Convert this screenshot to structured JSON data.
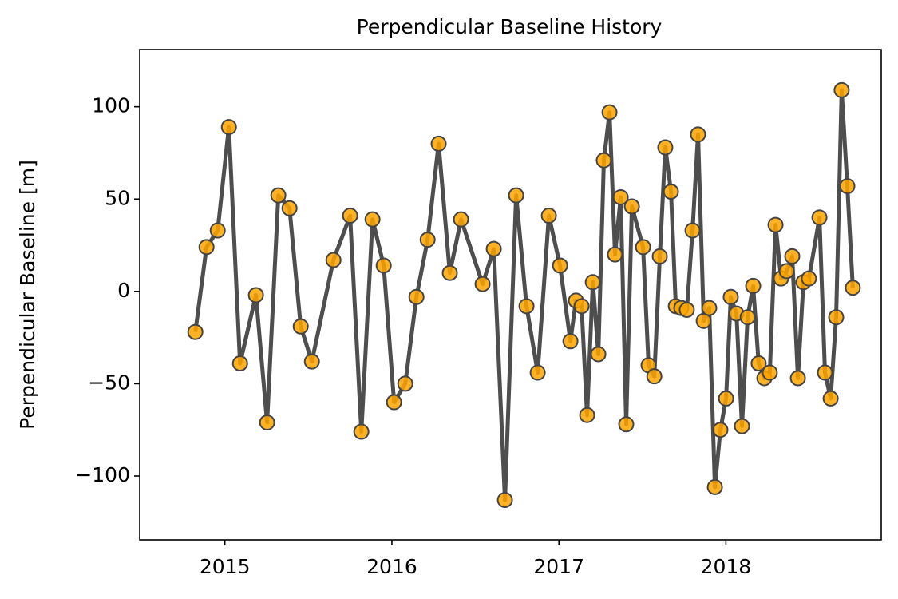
{
  "chart_data": {
    "type": "line",
    "title": "Perpendicular Baseline History",
    "ylabel": "Perpendicular Baseline [m]",
    "line_color": "#444444",
    "marker_color": "#ffa500",
    "x": [
      2014.823,
      2014.89,
      2014.957,
      2015.024,
      2015.091,
      2015.186,
      2015.253,
      2015.32,
      2015.387,
      2015.454,
      2015.521,
      2015.65,
      2015.75,
      2015.817,
      2015.884,
      2015.951,
      2016.013,
      2016.08,
      2016.147,
      2016.214,
      2016.28,
      2016.347,
      2016.414,
      2016.543,
      2016.61,
      2016.677,
      2016.744,
      2016.806,
      2016.873,
      2016.94,
      2017.007,
      2017.069,
      2017.102,
      2017.136,
      2017.169,
      2017.203,
      2017.236,
      2017.269,
      2017.303,
      2017.336,
      2017.37,
      2017.403,
      2017.437,
      2017.504,
      2017.537,
      2017.571,
      2017.604,
      2017.637,
      2017.671,
      2017.7,
      2017.733,
      2017.766,
      2017.8,
      2017.833,
      2017.867,
      2017.9,
      2017.934,
      2017.967,
      2018.001,
      2018.029,
      2018.063,
      2018.096,
      2018.13,
      2018.163,
      2018.196,
      2018.23,
      2018.263,
      2018.297,
      2018.33,
      2018.364,
      2018.397,
      2018.431,
      2018.464,
      2018.497,
      2018.56,
      2018.593,
      2018.627,
      2018.66,
      2018.693,
      2018.727,
      2018.76
    ],
    "values": [
      -22,
      24,
      33,
      89,
      -39,
      -2,
      -71,
      52,
      45,
      -19,
      -38,
      17,
      41,
      -76,
      39,
      14,
      -60,
      -50,
      -3,
      28,
      80,
      10,
      39,
      4,
      23,
      -113,
      52,
      -8,
      -44,
      41,
      14,
      -27,
      -5,
      -8,
      -67,
      5,
      -34,
      71,
      97,
      20,
      51,
      -72,
      46,
      24,
      -40,
      -46,
      19,
      78,
      54,
      -8,
      -9,
      -10,
      33,
      85,
      -16,
      -9,
      -106,
      -75,
      -58,
      -3,
      -12,
      -73,
      -14,
      3,
      -39,
      -47,
      -44,
      36,
      7,
      11,
      19,
      -47,
      5,
      7,
      40,
      -44,
      -58,
      -14,
      109,
      57,
      2
    ],
    "xlim": [
      2014.49,
      2018.93
    ],
    "xticks": [
      2015,
      2016,
      2017,
      2018
    ],
    "ylim": [
      -134.6,
      131
    ],
    "yticks": [
      {
        "value": -100,
        "label": "−100"
      },
      {
        "value": -50,
        "label": "−50"
      },
      0,
      50,
      100
    ]
  }
}
